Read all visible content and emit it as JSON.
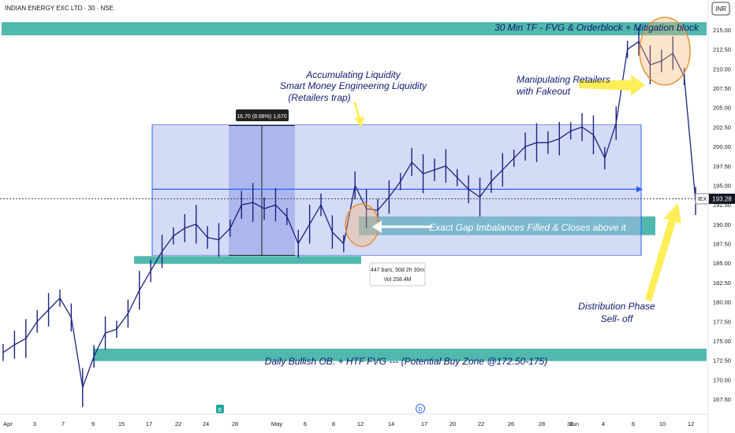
{
  "symbol_header": "INDIAN ENERGY EXC LTD · 30 · NSE",
  "currency": "INR",
  "ticker_tag": "IEX",
  "last_price": "193.28",
  "colors": {
    "zone": "#26a69a",
    "range_box": "#aab8ee",
    "candle": "#1a237e",
    "annotation_text": "#0d1b6e",
    "arrow": "#ffee58",
    "highlight": "#f6b26b"
  },
  "annotations": {
    "top_zone": "30 Min TF - FVG & Orderblock + Mitigation block",
    "accumulating_1": "Accumulating Liquidity",
    "accumulating_2": "Smart Money Engineering Liquidity",
    "accumulating_3": "(Retailers trap)",
    "manipulating_1": "Manipulating Retailers",
    "manipulating_2": "with Fakeout",
    "gap_filled": "Exact Gap Imbalances Filled & Closes above it",
    "distribution_1": "Distribution Phase",
    "distribution_2": "Sell- off",
    "bottom_zone": "Daily Bullish OB. + HTF FVG --- (Potential Buy Zone @172.50-175)",
    "measure_label": "16.70 (8.98%) 1,670",
    "range_info_1": "447 bars, 50d 2h 30m",
    "range_info_2": "Vol 258.4M"
  },
  "event_markers": [
    "E",
    "D"
  ],
  "chart_data": {
    "type": "line",
    "title": "INDIAN ENERGY EXC LTD · 30 · NSE",
    "ylim": [
      166,
      217
    ],
    "y_ticks": [
      "215.00",
      "212.50",
      "210.00",
      "207.50",
      "205.00",
      "202.50",
      "200.00",
      "197.50",
      "195.00",
      "192.50",
      "190.00",
      "187.50",
      "185.00",
      "182.50",
      "180.00",
      "177.50",
      "175.00",
      "172.50",
      "170.00",
      "167.50"
    ],
    "x_ticks": [
      "Apr",
      "3",
      "7",
      "9",
      "15",
      "17",
      "22",
      "24",
      "28",
      "May",
      "6",
      "8",
      "12",
      "14",
      "17",
      "20",
      "22",
      "26",
      "28",
      "30",
      "Jun",
      "4",
      "6",
      "10",
      "12"
    ],
    "x_tick_index": [
      0,
      3,
      6,
      8,
      12,
      14,
      17,
      19,
      22,
      25,
      28,
      30,
      33,
      35,
      38,
      40,
      42,
      45,
      47,
      49,
      52,
      55,
      57,
      60,
      62
    ],
    "last_price": 193.28,
    "zones": [
      {
        "label": "30 Min TF - FVG & Orderblock + Mitigation block",
        "low": 214.3,
        "high": 216.0
      },
      {
        "label": "Exact Gap Imbalances Filled & Closes above it",
        "low": 188.6,
        "high": 191.0
      },
      {
        "label": "",
        "low": 184.9,
        "high": 185.9
      },
      {
        "label": "Daily Bullish OB. + HTF FVG --- (Potential Buy Zone @172.50-175)",
        "low": 172.4,
        "high": 174.0
      }
    ],
    "range_box": {
      "low": 186.0,
      "high": 202.8,
      "mid": 194.5
    },
    "measure": {
      "low": 186.0,
      "high": 202.7,
      "change": "16.70 (8.98%) 1,670"
    },
    "series": [
      {
        "values": [
          173.5,
          174.5,
          175.3,
          177.5,
          179.0,
          180.5,
          178.0,
          169.0,
          173.0,
          176.0,
          176.5,
          178.5,
          181.5,
          184.0,
          186.5,
          188.5,
          189.5,
          190.0,
          188.3,
          188.0,
          189.5,
          192.5,
          192.8,
          192.0,
          192.5,
          191.0,
          187.5,
          190.0,
          192.5,
          189.0,
          187.5,
          195.0,
          192.0,
          191.8,
          193.5,
          195.5,
          198.0,
          196.5,
          197.0,
          197.5,
          196.0,
          194.5,
          193.5,
          195.5,
          197.0,
          198.5,
          200.0,
          200.5,
          200.5,
          201.0,
          202.0,
          202.5,
          201.5,
          198.5,
          203.0,
          212.5,
          213.5,
          210.5,
          211.0,
          212.0,
          209.0,
          193.0
        ]
      }
    ]
  }
}
